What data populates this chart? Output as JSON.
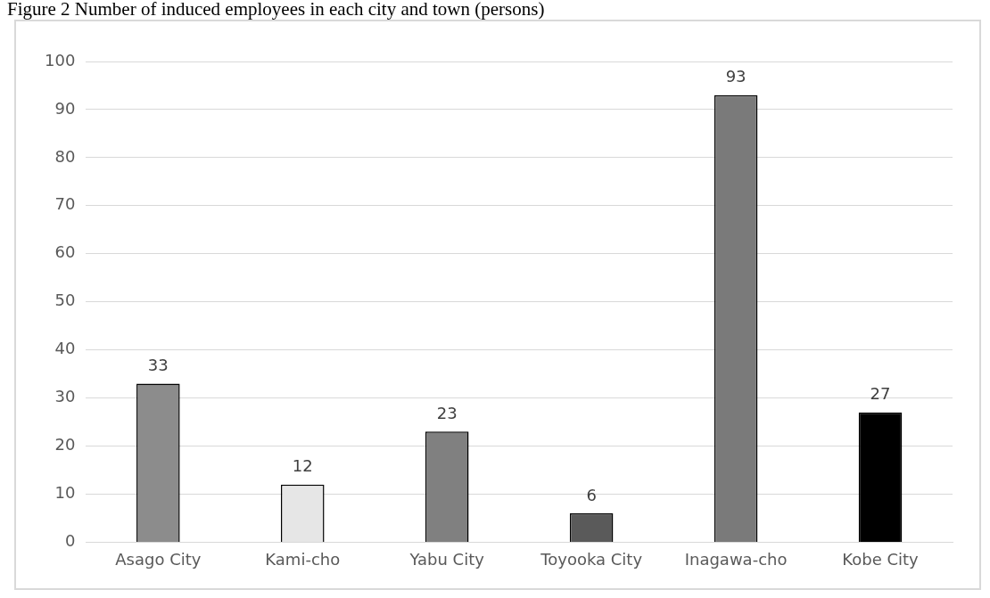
{
  "chart_data": {
    "type": "bar",
    "title": "Figure 2 Number of induced employees in each city and town (persons)",
    "categories": [
      "Asago City",
      "Kami-cho",
      "Yabu City",
      "Toyooka City",
      "Inagawa-cho",
      "Kobe City"
    ],
    "values": [
      33,
      12,
      23,
      6,
      93,
      27
    ],
    "colors": [
      "#8c8c8c",
      "#e6e6e6",
      "#808080",
      "#5a5a5a",
      "#7a7a7a",
      "#000000"
    ],
    "ylim": [
      0,
      100
    ],
    "yticks": [
      0,
      10,
      20,
      30,
      40,
      50,
      60,
      70,
      80,
      90,
      100
    ],
    "grid": "y",
    "data_labels": true
  }
}
